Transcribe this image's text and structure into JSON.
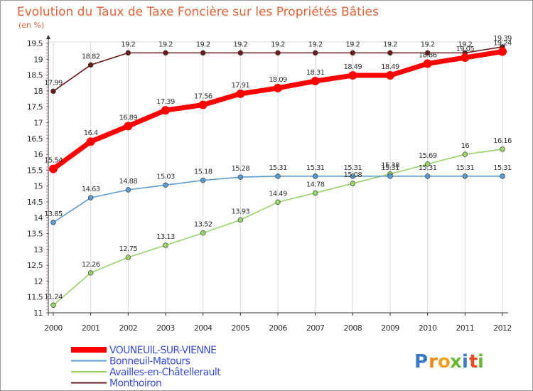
{
  "chart_data": {
    "type": "line",
    "title": "Evolution du Taux de Taxe Foncière sur les Propriétés Bâties",
    "ylabel": "(en %)",
    "xlabel": "",
    "ylim": [
      11,
      19.5
    ],
    "yticks": [
      "11",
      "11.5",
      "12",
      "12.5",
      "13",
      "13.5",
      "14",
      "14.5",
      "15",
      "15.5",
      "16",
      "16.5",
      "17",
      "17.5",
      "18",
      "18.5",
      "19",
      "19.5"
    ],
    "categories": [
      "2000",
      "2001",
      "2002",
      "2003",
      "2004",
      "2005",
      "2006",
      "2007",
      "2008",
      "2009",
      "2010",
      "2011",
      "2012"
    ],
    "series": [
      {
        "name": "Monthoiron",
        "color": "#6b1b1b",
        "values": [
          17.99,
          18.82,
          19.2,
          19.2,
          19.2,
          19.2,
          19.2,
          19.2,
          19.2,
          19.2,
          19.2,
          19.2,
          19.39
        ]
      },
      {
        "name": "Availles-en-Châtellerault",
        "color": "#99d16a",
        "values": [
          11.24,
          12.26,
          12.75,
          13.13,
          13.52,
          13.93,
          14.49,
          14.78,
          15.08,
          15.38,
          15.69,
          16,
          16.16
        ]
      },
      {
        "name": "Bonneuil-Matours",
        "color": "#5b9bd0",
        "values": [
          13.85,
          14.63,
          14.88,
          15.03,
          15.18,
          15.28,
          15.31,
          15.31,
          15.31,
          15.31,
          15.31,
          15.31,
          15.31
        ]
      },
      {
        "name": "VOUNEUIL-SUR-VIENNE",
        "color": "#ff0000",
        "values": [
          15.54,
          16.4,
          16.89,
          17.39,
          17.56,
          17.91,
          18.09,
          18.31,
          18.49,
          18.49,
          18.86,
          19.05,
          19.24
        ]
      }
    ],
    "legend": [
      "VOUNEUIL-SUR-VIENNE",
      "Bonneuil-Matours",
      "Availles-en-Châtellerault",
      "Monthoiron"
    ],
    "legend_colors": [
      "#ff0000",
      "#5b9bd0",
      "#99d16a",
      "#6b1b1b"
    ],
    "legend_text_color": "#3a4fd0"
  },
  "logo": {
    "letters": [
      "P",
      "r",
      "o",
      "x",
      "i",
      "t",
      "i"
    ],
    "colors": [
      "#3a78c8",
      "#f08a1a",
      "#f0a020",
      "#6cb83a",
      "#3a78c8",
      "#e84a2a",
      "#6cb83a"
    ]
  }
}
